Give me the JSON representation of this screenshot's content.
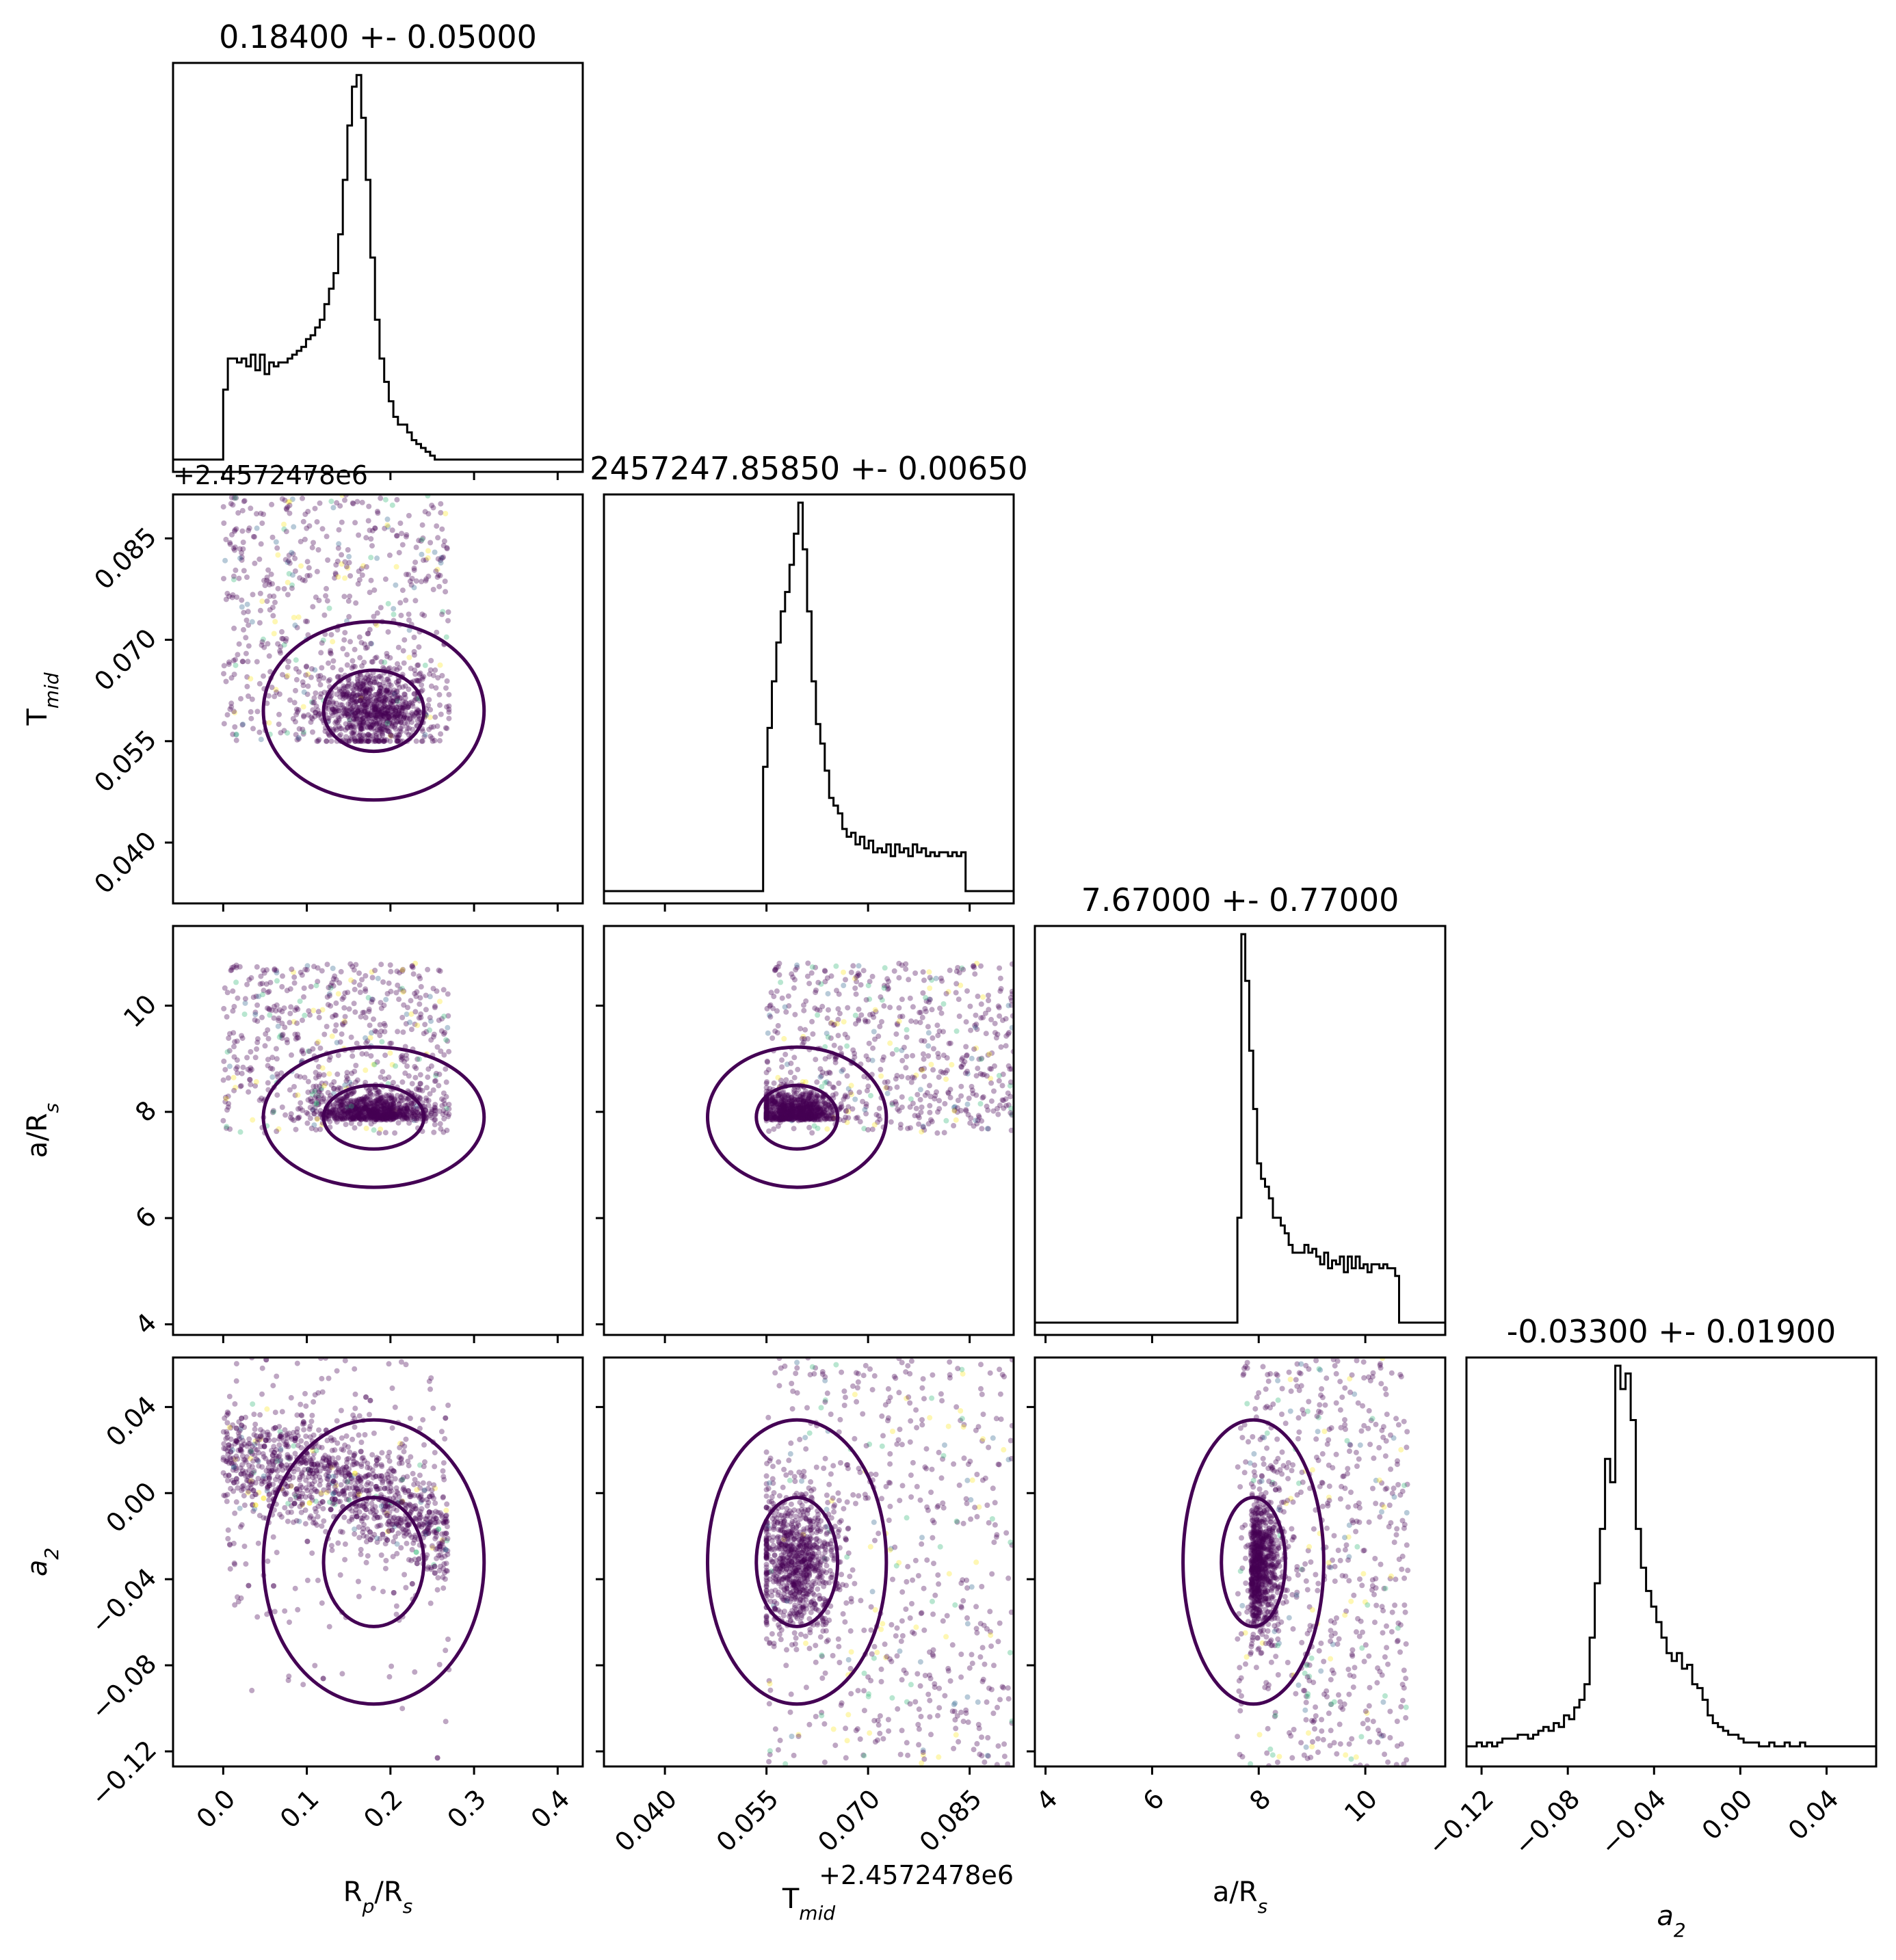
{
  "chart_data": {
    "type": "corner",
    "parameters": [
      {
        "key": "rp",
        "label_main": "R",
        "label_sub": "p",
        "label_tail": "/R",
        "label_sub2": "s",
        "range": [
          -0.06,
          0.43
        ],
        "ticks": [
          0.0,
          0.1,
          0.2,
          0.3,
          0.4
        ],
        "tick_labels": [
          "0.0",
          "0.1",
          "0.2",
          "0.3",
          "0.4"
        ]
      },
      {
        "key": "tmid",
        "label_main": "T",
        "label_sub": "mid",
        "label_tail": "",
        "label_sub2": "",
        "range": [
          0.031,
          0.0915
        ],
        "ticks": [
          0.04,
          0.055,
          0.07,
          0.085
        ],
        "tick_labels": [
          "0.040",
          "0.055",
          "0.070",
          "0.085"
        ],
        "offset_text": "+2.4572478e6"
      },
      {
        "key": "ars",
        "label_main": "a/R",
        "label_sub": "s",
        "label_tail": "",
        "label_sub2": "",
        "range": [
          3.8,
          11.5
        ],
        "ticks": [
          4,
          6,
          8,
          10
        ],
        "tick_labels": [
          "4",
          "6",
          "8",
          "10"
        ]
      },
      {
        "key": "a2",
        "label_main": "a",
        "label_sub": "2",
        "label_tail": "",
        "label_sub2": "",
        "italic": true,
        "range": [
          -0.127,
          0.063
        ],
        "ticks": [
          -0.12,
          -0.08,
          -0.04,
          0.0,
          0.04
        ],
        "tick_labels": [
          "−0.12",
          "−0.08",
          "−0.04",
          "0.00",
          "0.04"
        ]
      }
    ],
    "titles": [
      "0.18400 +- 0.05000",
      "2457247.85850 +- 0.00650",
      "7.67000 +- 0.77000",
      "-0.03300 +- 0.01900"
    ],
    "histograms": [
      {
        "bin_start": 0.0,
        "bin_width": 0.0055,
        "counts": [
          0.18,
          0.26,
          0.26,
          0.25,
          0.26,
          0.24,
          0.27,
          0.23,
          0.27,
          0.22,
          0.25,
          0.24,
          0.25,
          0.25,
          0.26,
          0.27,
          0.28,
          0.29,
          0.31,
          0.32,
          0.34,
          0.36,
          0.4,
          0.44,
          0.48,
          0.58,
          0.72,
          0.86,
          0.96,
          0.99,
          0.88,
          0.72,
          0.52,
          0.36,
          0.26,
          0.2,
          0.15,
          0.11,
          0.09,
          0.09,
          0.07,
          0.05,
          0.04,
          0.03,
          0.02,
          0.01,
          0.0,
          0.0,
          0.0,
          0.0
        ]
      },
      {
        "bin_start": 0.0545,
        "bin_width": 0.00065,
        "counts": [
          0.32,
          0.42,
          0.54,
          0.64,
          0.72,
          0.77,
          0.84,
          0.92,
          1.0,
          0.88,
          0.72,
          0.54,
          0.43,
          0.38,
          0.31,
          0.24,
          0.22,
          0.2,
          0.16,
          0.14,
          0.15,
          0.12,
          0.14,
          0.11,
          0.13,
          0.1,
          0.11,
          0.1,
          0.12,
          0.09,
          0.12,
          0.1,
          0.11,
          0.09,
          0.12,
          0.1,
          0.11,
          0.09,
          0.1,
          0.09,
          0.1,
          0.1,
          0.09,
          0.1,
          0.09,
          0.1
        ]
      },
      {
        "bin_start": 7.6,
        "bin_width": 0.074,
        "counts": [
          0.27,
          1.0,
          0.88,
          0.7,
          0.55,
          0.41,
          0.37,
          0.35,
          0.32,
          0.27,
          0.27,
          0.25,
          0.23,
          0.2,
          0.18,
          0.18,
          0.18,
          0.2,
          0.18,
          0.19,
          0.17,
          0.15,
          0.18,
          0.14,
          0.16,
          0.15,
          0.17,
          0.13,
          0.17,
          0.14,
          0.17,
          0.14,
          0.15,
          0.13,
          0.15,
          0.15,
          0.14,
          0.15,
          0.14,
          0.14,
          0.12,
          0.0
        ]
      },
      {
        "bin_start": -0.127,
        "bin_width": 0.00238,
        "counts": [
          0.02,
          0.02,
          0.03,
          0.02,
          0.03,
          0.02,
          0.03,
          0.04,
          0.04,
          0.04,
          0.05,
          0.05,
          0.04,
          0.05,
          0.06,
          0.07,
          0.06,
          0.08,
          0.07,
          0.1,
          0.09,
          0.12,
          0.14,
          0.18,
          0.3,
          0.44,
          0.58,
          0.76,
          0.7,
          1.0,
          0.94,
          0.98,
          0.86,
          0.58,
          0.48,
          0.42,
          0.38,
          0.34,
          0.3,
          0.26,
          0.24,
          0.26,
          0.22,
          0.23,
          0.18,
          0.17,
          0.14,
          0.1,
          0.08,
          0.07,
          0.06,
          0.05,
          0.05,
          0.04,
          0.03,
          0.03,
          0.03,
          0.02,
          0.02,
          0.03,
          0.02,
          0.02,
          0.03,
          0.02,
          0.02,
          0.03,
          0.02,
          0.02,
          0.02,
          0.02,
          0.02,
          0.02,
          0.02,
          0.02,
          0.02,
          0.02,
          0.02,
          0.02,
          0.02,
          0.02
        ]
      }
    ],
    "grid": false,
    "point_color": "#440154",
    "colormap_hint": [
      "#440154",
      "#31688e",
      "#35b779",
      "#fde725"
    ]
  }
}
